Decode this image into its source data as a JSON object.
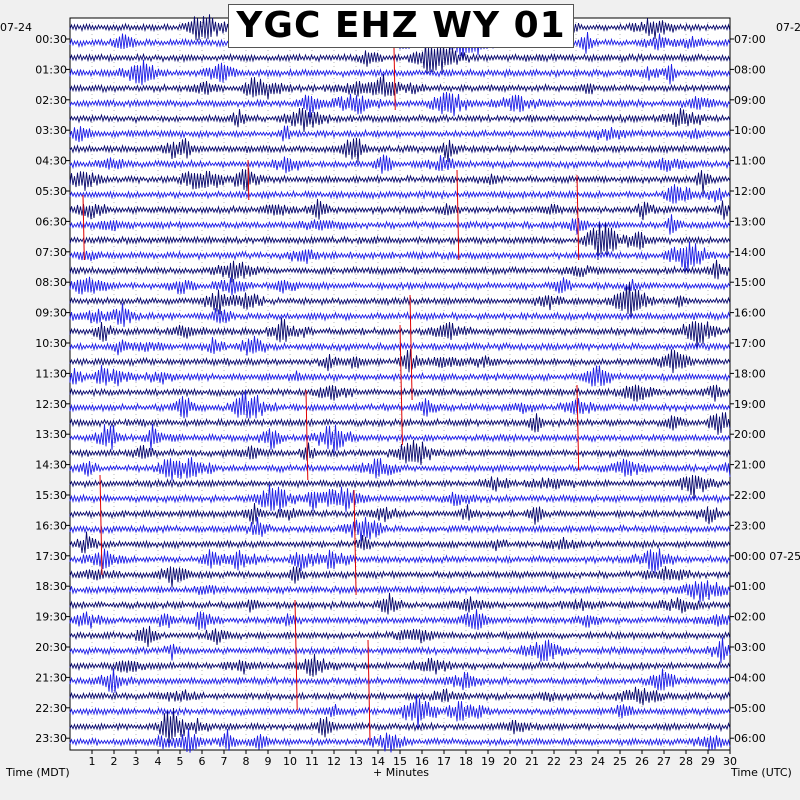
{
  "title": "YGC EHZ WY 01",
  "left_date": "07-24",
  "right_date_top": "07-2",
  "left_axis_label": "Time (MDT)",
  "right_axis_label": "Time (UTC)",
  "x_axis_label": "+ Minutes",
  "colors": {
    "trace_dark": "#0a0a6e",
    "trace_blue": "#1f1fe6",
    "event_marker": "#e00000",
    "background": "#ffffff",
    "page": "#f0f0f0"
  },
  "chart_data": {
    "type": "line",
    "xlim": [
      0,
      30
    ],
    "x_ticks": [
      1,
      2,
      3,
      4,
      5,
      6,
      7,
      8,
      9,
      10,
      11,
      12,
      13,
      14,
      15,
      16,
      17,
      18,
      19,
      20,
      21,
      22,
      23,
      24,
      25,
      26,
      27,
      28,
      29,
      30
    ],
    "left_ticks": [
      "00:30",
      "01:30",
      "02:30",
      "03:30",
      "04:30",
      "05:30",
      "06:30",
      "07:30",
      "08:30",
      "09:30",
      "10:30",
      "11:30",
      "12:30",
      "13:30",
      "14:30",
      "15:30",
      "16:30",
      "17:30",
      "18:30",
      "19:30",
      "20:30",
      "21:30",
      "22:30",
      "23:30"
    ],
    "right_ticks": [
      "07:00",
      "08:00",
      "09:00",
      "10:00",
      "11:00",
      "12:00",
      "13:00",
      "14:00",
      "15:00",
      "16:00",
      "17:00",
      "18:00",
      "19:00",
      "20:00",
      "21:00",
      "22:00",
      "23:00",
      "00:00 07-25",
      "01:00",
      "02:00",
      "03:00",
      "04:00",
      "05:00",
      "06:00"
    ],
    "trace_count": 48,
    "grid": true
  }
}
